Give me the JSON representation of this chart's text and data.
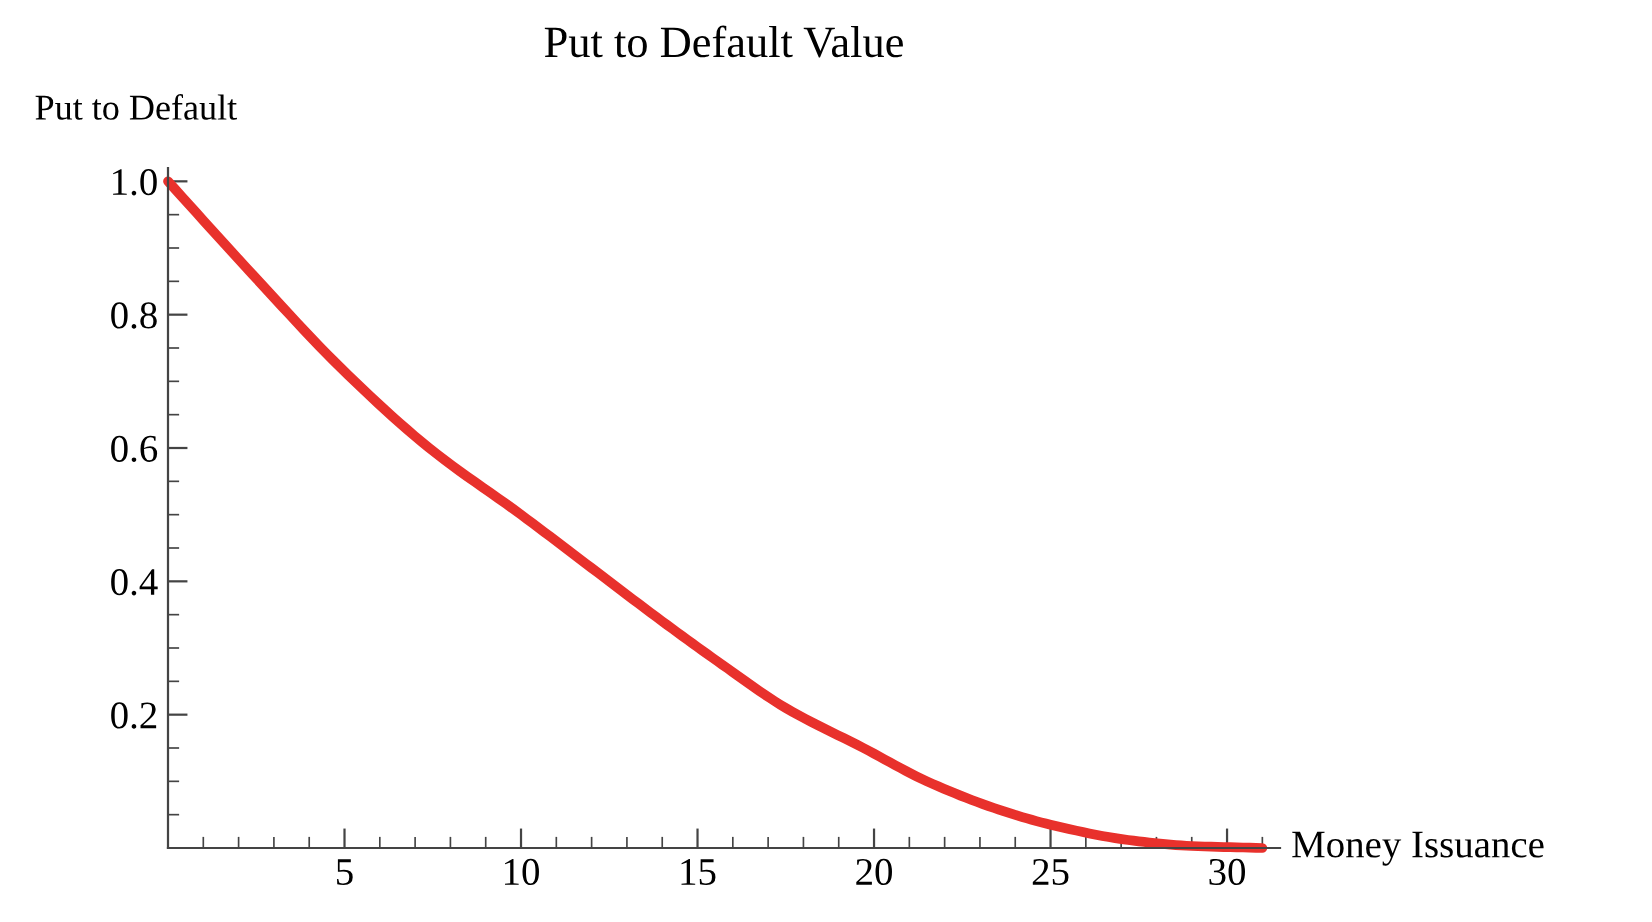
{
  "chart_data": {
    "type": "line",
    "title": "Put to Default Value",
    "xlabel": "Money Issuance",
    "ylabel": "Put to Default",
    "x": [
      0,
      2.4,
      4.9,
      7.4,
      10,
      12,
      14,
      15.7,
      17.5,
      19.7,
      21.5,
      23.4,
      25,
      27.2,
      29,
      31
    ],
    "series": [
      {
        "color": "#e8312c",
        "values": [
          1.0,
          0.86,
          0.72,
          0.6,
          0.5,
          0.42,
          0.34,
          0.275,
          0.21,
          0.15,
          0.1,
          0.06,
          0.035,
          0.012,
          0.003,
          0
        ]
      }
    ],
    "xlim": [
      0,
      31.5
    ],
    "ylim": [
      0,
      1.02
    ],
    "xticks": [
      {
        "value": 1,
        "label": null
      },
      {
        "value": 2,
        "label": null
      },
      {
        "value": 3,
        "label": null
      },
      {
        "value": 4,
        "label": null
      },
      5,
      {
        "value": 6,
        "label": null
      },
      {
        "value": 7,
        "label": null
      },
      {
        "value": 8,
        "label": null
      },
      {
        "value": 9,
        "label": null
      },
      10,
      {
        "value": 11,
        "label": null
      },
      {
        "value": 12,
        "label": null
      },
      {
        "value": 13,
        "label": null
      },
      {
        "value": 14,
        "label": null
      },
      15,
      {
        "value": 16,
        "label": null
      },
      {
        "value": 17,
        "label": null
      },
      {
        "value": 18,
        "label": null
      },
      {
        "value": 19,
        "label": null
      },
      20,
      {
        "value": 21,
        "label": null
      },
      {
        "value": 22,
        "label": null
      },
      {
        "value": 23,
        "label": null
      },
      {
        "value": 24,
        "label": null
      },
      25,
      {
        "value": 26,
        "label": null
      },
      {
        "value": 27,
        "label": null
      },
      {
        "value": 28,
        "label": null
      },
      {
        "value": 29,
        "label": null
      },
      30,
      {
        "value": 31,
        "label": null
      }
    ],
    "yticks": [
      {
        "value": 0.05,
        "label": null
      },
      {
        "value": 0.1,
        "label": null
      },
      {
        "value": 0.15,
        "label": null
      },
      0.2,
      {
        "value": 0.25,
        "label": null
      },
      {
        "value": 0.3,
        "label": null
      },
      {
        "value": 0.35,
        "label": null
      },
      0.4,
      {
        "value": 0.45,
        "label": null
      },
      {
        "value": 0.5,
        "label": null
      },
      {
        "value": 0.55,
        "label": null
      },
      0.6,
      {
        "value": 0.65,
        "label": null
      },
      {
        "value": 0.7,
        "label": null
      },
      {
        "value": 0.75,
        "label": null
      },
      0.8,
      {
        "value": 0.85,
        "label": null
      },
      {
        "value": 0.9,
        "label": null
      },
      {
        "value": 0.95,
        "label": null
      },
      {
        "value": 1.0,
        "label": "1.0"
      }
    ],
    "grid": false,
    "legend": false,
    "marker": "none",
    "line_style": "solid"
  }
}
